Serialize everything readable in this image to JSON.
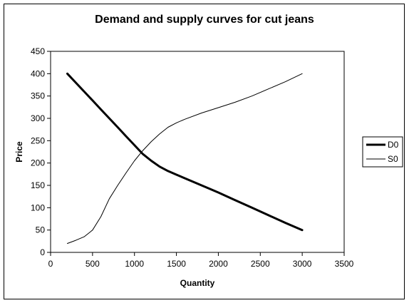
{
  "chart_data": {
    "type": "line",
    "title": "Demand and supply curves for cut jeans",
    "xlabel": "Quantity",
    "ylabel": "Price",
    "xlim": [
      0,
      3500
    ],
    "ylim": [
      0,
      450
    ],
    "xticks": [
      0,
      500,
      1000,
      1500,
      2000,
      2500,
      3000,
      3500
    ],
    "yticks": [
      0,
      50,
      100,
      150,
      200,
      250,
      300,
      350,
      400,
      450
    ],
    "grid": false,
    "legend_position": "right",
    "series": [
      {
        "name": "D0",
        "style": "thick",
        "color": "#000000",
        "x": [
          200,
          300,
          400,
          500,
          600,
          700,
          800,
          900,
          1000,
          1100,
          1200,
          1300,
          1400,
          1500,
          1600,
          1700,
          1800,
          1900,
          2000,
          2200,
          2400,
          2600,
          2800,
          3000
        ],
        "y": [
          400,
          380,
          360,
          340,
          320,
          300,
          280,
          260,
          240,
          220,
          205,
          192,
          182,
          174,
          166,
          158,
          150,
          142,
          134,
          117,
          100,
          83,
          66,
          50
        ]
      },
      {
        "name": "S0",
        "style": "thin",
        "color": "#000000",
        "x": [
          200,
          300,
          400,
          500,
          600,
          700,
          800,
          900,
          1000,
          1100,
          1200,
          1300,
          1400,
          1500,
          1600,
          1800,
          2000,
          2200,
          2400,
          2600,
          2800,
          3000
        ],
        "y": [
          20,
          27,
          35,
          50,
          80,
          120,
          150,
          178,
          205,
          228,
          248,
          265,
          280,
          290,
          298,
          312,
          324,
          336,
          350,
          366,
          382,
          400
        ]
      }
    ]
  }
}
